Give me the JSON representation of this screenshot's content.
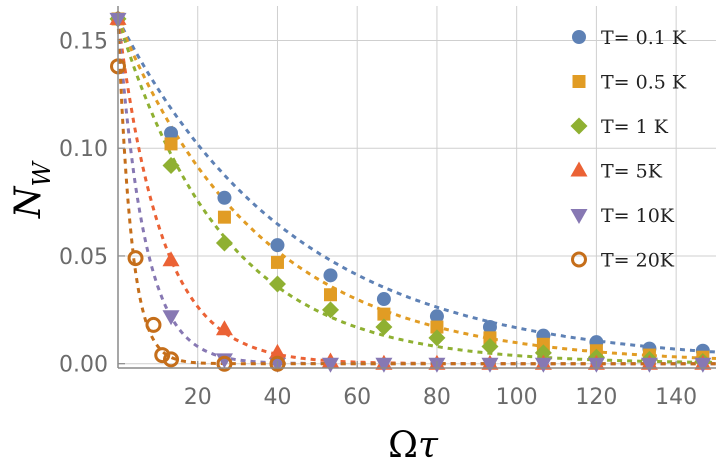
{
  "chart_data": {
    "type": "scatter",
    "title": "",
    "xlabel_main": "Ω",
    "xlabel_sub": "τ",
    "ylabel_main": "N",
    "ylabel_sub": "W",
    "xlim": [
      0,
      150
    ],
    "ylim": [
      -0.002,
      0.166
    ],
    "xticks": [
      20,
      40,
      60,
      80,
      100,
      120,
      140
    ],
    "yticks": [
      0.0,
      0.05,
      0.1,
      0.15
    ],
    "ytick_labels": [
      "0.00",
      "0.05",
      "0.10",
      "0.15"
    ],
    "grid": true,
    "legend_position": "top-right",
    "series": [
      {
        "name": "T= 0.1 K",
        "marker": "circle",
        "color": "#5e81b5",
        "x": [
          0,
          13.3,
          26.7,
          40,
          53.3,
          66.7,
          80,
          93.3,
          106.7,
          120,
          133.3,
          146.7
        ],
        "y": [
          0.16,
          0.107,
          0.077,
          0.055,
          0.041,
          0.03,
          0.022,
          0.017,
          0.013,
          0.01,
          0.007,
          0.006
        ],
        "fit_a": 0.16,
        "fit_k": 0.0226
      },
      {
        "name": "T= 0.5 K",
        "marker": "square",
        "color": "#e19c24",
        "x": [
          0,
          13.3,
          26.7,
          40,
          53.3,
          66.7,
          80,
          93.3,
          106.7,
          120,
          133.3,
          146.7
        ],
        "y": [
          0.16,
          0.102,
          0.068,
          0.047,
          0.032,
          0.023,
          0.017,
          0.012,
          0.009,
          0.006,
          0.004,
          0.003
        ],
        "fit_a": 0.16,
        "fit_k": 0.028
      },
      {
        "name": "T= 1 K",
        "marker": "diamond",
        "color": "#8fb032",
        "x": [
          0,
          13.3,
          26.7,
          40,
          53.3,
          66.7,
          80,
          93.3,
          106.7,
          120,
          133.3,
          146.7
        ],
        "y": [
          0.16,
          0.092,
          0.056,
          0.037,
          0.025,
          0.017,
          0.012,
          0.008,
          0.005,
          0.003,
          0.002,
          0.001
        ],
        "fit_a": 0.16,
        "fit_k": 0.0375
      },
      {
        "name": "T= 5K",
        "marker": "triangle-up",
        "color": "#eb6235",
        "x": [
          0,
          13.3,
          26.7,
          40,
          53.3,
          66.7,
          80,
          93.3,
          106.7,
          120,
          133.3,
          146.7
        ],
        "y": [
          0.16,
          0.048,
          0.016,
          0.005,
          0.001,
          0.0,
          0.0,
          0.0,
          0.0,
          0.0,
          0.0,
          0.0
        ],
        "fit_a": 0.16,
        "fit_k": 0.09
      },
      {
        "name": "T= 10K",
        "marker": "triangle-down",
        "color": "#8778b3",
        "x": [
          0,
          13.3,
          26.7,
          40,
          53.3,
          66.7,
          80,
          93.3,
          106.7,
          120,
          133.3,
          146.7
        ],
        "y": [
          0.16,
          0.022,
          0.002,
          0.0,
          0.0,
          0.0,
          0.0,
          0.0,
          0.0,
          0.0,
          0.0,
          0.0
        ],
        "fit_a": 0.16,
        "fit_k": 0.15
      },
      {
        "name": "T= 20K",
        "marker": "open-circle",
        "color": "#c56e1a",
        "x": [
          0,
          4.4,
          8.9,
          11.1,
          13.3,
          26.7,
          40
        ],
        "y": [
          0.138,
          0.049,
          0.018,
          0.004,
          0.002,
          0.0,
          0.0
        ],
        "fit_a": 0.16,
        "fit_k": 0.3
      }
    ]
  }
}
